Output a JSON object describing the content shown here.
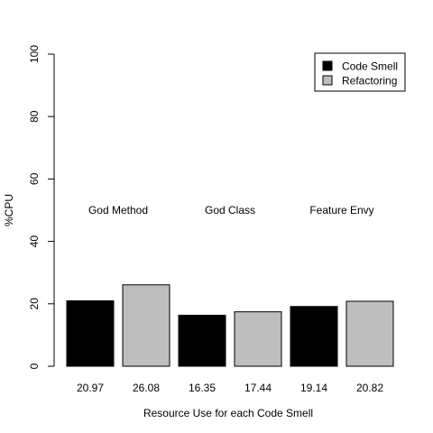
{
  "chart_data": {
    "type": "bar",
    "title": "",
    "xlabel": "Resource Use for each Code Smell",
    "ylabel": "%CPU",
    "ylim": [
      0,
      100
    ],
    "yticks": [
      0,
      20,
      40,
      60,
      80,
      100
    ],
    "grid": false,
    "legend_position": "top-right",
    "categories": [
      "20.97",
      "26.08",
      "16.35",
      "17.44",
      "19.14",
      "20.82"
    ],
    "values": [
      20.97,
      26.08,
      16.35,
      17.44,
      19.14,
      20.82
    ],
    "series_of_bar": [
      "Code Smell",
      "Refactoring",
      "Code Smell",
      "Refactoring",
      "Code Smell",
      "Refactoring"
    ],
    "groups": [
      {
        "label": "God Method",
        "bars": [
          0,
          1
        ]
      },
      {
        "label": "God Class",
        "bars": [
          2,
          3
        ]
      },
      {
        "label": "Feature Envy",
        "bars": [
          4,
          5
        ]
      }
    ],
    "group_label_y": 50,
    "series": [
      {
        "name": "Code Smell",
        "color": "#000000"
      },
      {
        "name": "Refactoring",
        "color": "#bebebe"
      }
    ]
  }
}
